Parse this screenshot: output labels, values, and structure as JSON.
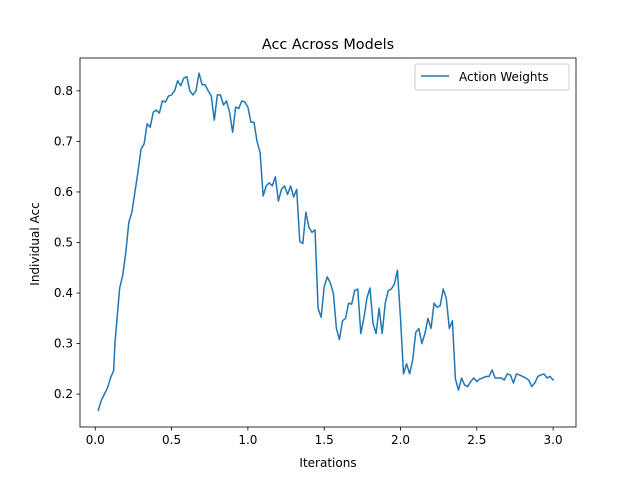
{
  "chart_data": {
    "type": "line",
    "title": "Acc Across Models",
    "xlabel": "Iterations",
    "ylabel": "Individual Acc",
    "xlim": [
      -0.1,
      3.15
    ],
    "ylim": [
      0.135,
      0.865
    ],
    "xticks": [
      0.0,
      0.5,
      1.0,
      1.5,
      2.0,
      2.5,
      3.0
    ],
    "xtick_labels": [
      "0.0",
      "0.5",
      "1.0",
      "1.5",
      "2.0",
      "2.5",
      "3.0"
    ],
    "yticks": [
      0.2,
      0.3,
      0.4,
      0.5,
      0.6,
      0.7,
      0.8
    ],
    "ytick_labels": [
      "0.2",
      "0.3",
      "0.4",
      "0.5",
      "0.6",
      "0.7",
      "0.8"
    ],
    "grid": false,
    "legend_position": "top-right",
    "series": [
      {
        "name": "Action Weights",
        "color": "#1f77b4",
        "x": [
          0.02,
          0.04,
          0.06,
          0.08,
          0.1,
          0.12,
          0.13,
          0.14,
          0.16,
          0.18,
          0.2,
          0.22,
          0.24,
          0.26,
          0.28,
          0.3,
          0.32,
          0.34,
          0.36,
          0.38,
          0.4,
          0.42,
          0.44,
          0.46,
          0.48,
          0.5,
          0.52,
          0.54,
          0.56,
          0.58,
          0.6,
          0.62,
          0.64,
          0.66,
          0.68,
          0.7,
          0.72,
          0.74,
          0.76,
          0.78,
          0.8,
          0.82,
          0.84,
          0.86,
          0.88,
          0.9,
          0.92,
          0.94,
          0.96,
          0.98,
          1.0,
          1.02,
          1.04,
          1.06,
          1.08,
          1.1,
          1.12,
          1.14,
          1.16,
          1.18,
          1.2,
          1.22,
          1.24,
          1.26,
          1.28,
          1.3,
          1.32,
          1.34,
          1.36,
          1.38,
          1.4,
          1.42,
          1.44,
          1.46,
          1.48,
          1.5,
          1.52,
          1.54,
          1.56,
          1.58,
          1.6,
          1.62,
          1.64,
          1.66,
          1.68,
          1.7,
          1.72,
          1.74,
          1.76,
          1.78,
          1.8,
          1.82,
          1.84,
          1.86,
          1.88,
          1.9,
          1.92,
          1.94,
          1.96,
          1.98,
          2.0,
          2.02,
          2.04,
          2.06,
          2.08,
          2.1,
          2.12,
          2.14,
          2.16,
          2.18,
          2.2,
          2.22,
          2.24,
          2.26,
          2.28,
          2.3,
          2.32,
          2.34,
          2.36,
          2.38,
          2.4,
          2.42,
          2.44,
          2.46,
          2.48,
          2.5,
          2.52,
          2.54,
          2.56,
          2.58,
          2.6,
          2.62,
          2.64,
          2.66,
          2.68,
          2.7,
          2.72,
          2.74,
          2.76,
          2.78,
          2.8,
          2.82,
          2.84,
          2.86,
          2.88,
          2.9,
          2.92,
          2.94,
          2.96,
          2.98,
          3.0
        ],
        "y": [
          0.168,
          0.188,
          0.2,
          0.212,
          0.232,
          0.246,
          0.305,
          0.34,
          0.41,
          0.435,
          0.48,
          0.54,
          0.56,
          0.6,
          0.64,
          0.685,
          0.695,
          0.735,
          0.728,
          0.758,
          0.762,
          0.756,
          0.78,
          0.778,
          0.79,
          0.792,
          0.8,
          0.82,
          0.81,
          0.825,
          0.828,
          0.8,
          0.792,
          0.8,
          0.835,
          0.812,
          0.812,
          0.8,
          0.79,
          0.742,
          0.792,
          0.792,
          0.772,
          0.78,
          0.758,
          0.718,
          0.768,
          0.765,
          0.78,
          0.778,
          0.768,
          0.738,
          0.738,
          0.7,
          0.678,
          0.592,
          0.612,
          0.618,
          0.612,
          0.63,
          0.582,
          0.605,
          0.612,
          0.595,
          0.612,
          0.59,
          0.605,
          0.502,
          0.498,
          0.56,
          0.53,
          0.52,
          0.525,
          0.37,
          0.352,
          0.412,
          0.432,
          0.42,
          0.4,
          0.33,
          0.308,
          0.345,
          0.35,
          0.38,
          0.378,
          0.405,
          0.408,
          0.32,
          0.35,
          0.39,
          0.41,
          0.34,
          0.32,
          0.37,
          0.32,
          0.38,
          0.405,
          0.408,
          0.418,
          0.445,
          0.35,
          0.24,
          0.26,
          0.24,
          0.268,
          0.322,
          0.33,
          0.3,
          0.32,
          0.35,
          0.33,
          0.38,
          0.372,
          0.375,
          0.408,
          0.39,
          0.33,
          0.345,
          0.23,
          0.208,
          0.232,
          0.218,
          0.215,
          0.225,
          0.232,
          0.225,
          0.23,
          0.232,
          0.235,
          0.235,
          0.248,
          0.232,
          0.232,
          0.232,
          0.228,
          0.24,
          0.238,
          0.222,
          0.24,
          0.238,
          0.235,
          0.232,
          0.228,
          0.215,
          0.222,
          0.235,
          0.238,
          0.24,
          0.232,
          0.235,
          0.228
        ]
      }
    ]
  }
}
